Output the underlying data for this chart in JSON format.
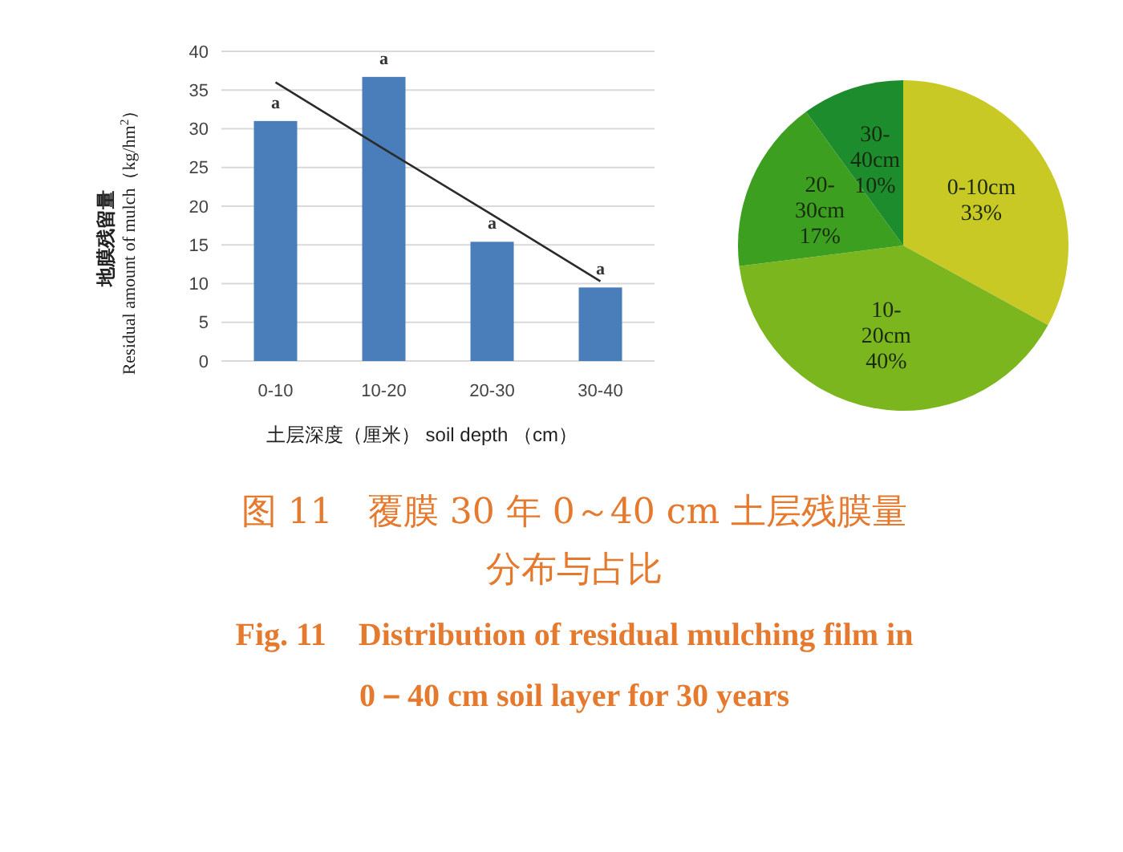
{
  "chart_data": [
    {
      "type": "bar",
      "title": "图 11　覆膜 30 年 0～40 cm 土层残膜量分布与占比",
      "subtitle": "Fig. 11　Distribution of residual mulching film in 0－40 cm soil layer for 30 years",
      "xlabel": "土层深度（厘米） soil depth （cm）",
      "ylabel": "地膜残留量\nResidual amount of mulch（kg/hm$^{2}$）",
      "categories": [
        "0-10",
        "10-20",
        "20-30",
        "30-40"
      ],
      "series": [
        {
          "type": "bar",
          "color": "#4a7ebb",
          "values": [
            31,
            36.7,
            15.4,
            9.5
          ]
        },
        {
          "type": "line",
          "color": "#2b2b2b",
          "x": [
            "0-10",
            "10-20",
            "20-30",
            "30-40"
          ],
          "values": [
            36.0,
            27.4,
            18.9,
            10.3
          ]
        }
      ],
      "ylim": [
        0,
        40
      ],
      "yticks": [
        0,
        5,
        10,
        15,
        20,
        25,
        30,
        35,
        40
      ],
      "grid": "y",
      "marker": "none",
      "line_style": "solid",
      "annotations": [
        {
          "text": "a",
          "x": "0-10",
          "y": 31
        },
        {
          "text": "a",
          "x": "10-20",
          "y": 36.7
        },
        {
          "text": "a",
          "x": "20-30",
          "y": 15.4
        },
        {
          "text": "a",
          "x": "30-40",
          "y": 9.5
        }
      ]
    },
    {
      "type": "pie",
      "categories": [
        "0-10cm",
        "10-20cm",
        "20-30cm",
        "30-40cm"
      ],
      "values": [
        33,
        40,
        17,
        10
      ],
      "colors": [
        "#c9c926",
        "#7cb61e",
        "#3c9f20",
        "#1c8c2c"
      ],
      "value_labels": [
        "33%",
        "40%",
        "17%",
        "10%"
      ]
    }
  ]
}
